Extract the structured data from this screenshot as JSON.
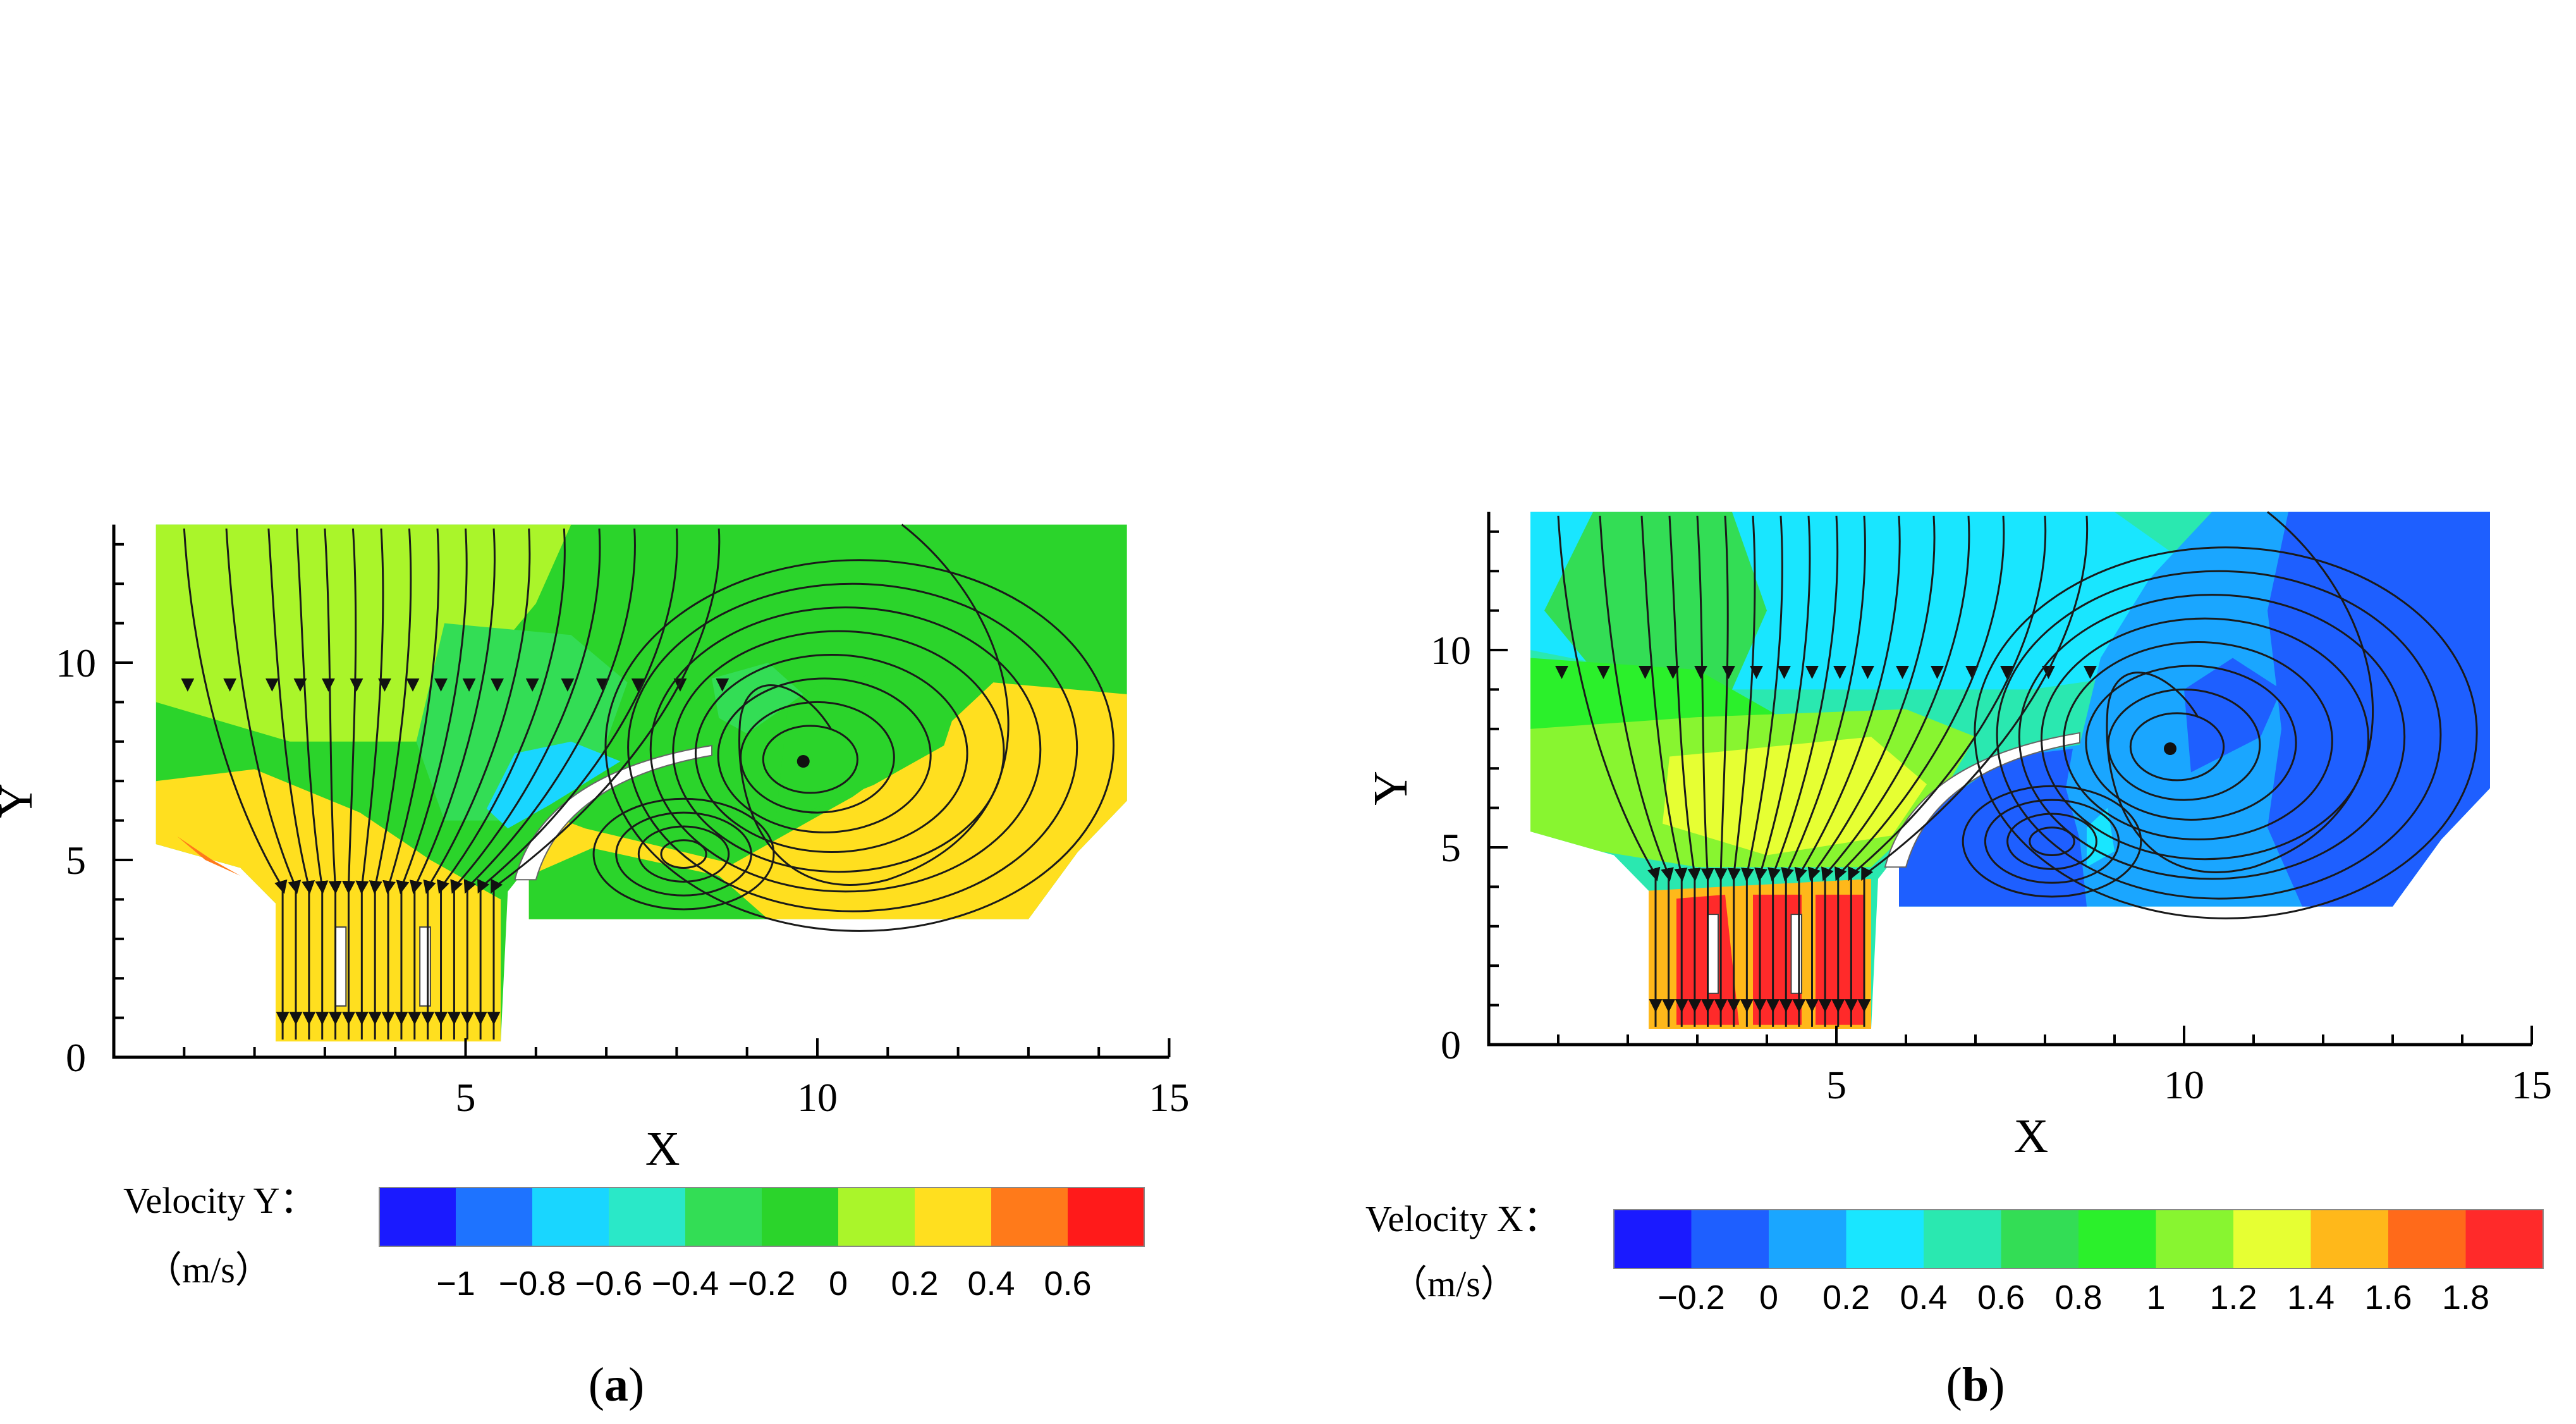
{
  "figure": {
    "panels": [
      {
        "id": "a",
        "panel_label_open": "(",
        "panel_label_letter": "a",
        "panel_label_close": ")",
        "colorbar_title": "Velocity Y：",
        "colorbar_unit": "（m/s）",
        "colorbar_colors": [
          "#1a1aff",
          "#1e73ff",
          "#19d6ff",
          "#2ae8c8",
          "#33dd55",
          "#2bd42b",
          "#aaf52a",
          "#ffdf1f",
          "#ff7a1a",
          "#ff1a1a"
        ],
        "colorbar_ticks": [
          "−1",
          "−0.8",
          "−0.6",
          "−0.4",
          "−0.2",
          "0",
          "0.2",
          "0.4",
          "0.6"
        ]
      },
      {
        "id": "b",
        "panel_label_open": "(",
        "panel_label_letter": "b",
        "panel_label_close": ")",
        "colorbar_title": "Velocity X：",
        "colorbar_unit": "（m/s）",
        "colorbar_colors": [
          "#1a1aff",
          "#1e5fff",
          "#1aa6ff",
          "#19e6ff",
          "#2ae8b0",
          "#33dd55",
          "#2bf02b",
          "#88f530",
          "#e6ff33",
          "#ffb81a",
          "#ff6a1a",
          "#ff2a2a"
        ],
        "colorbar_ticks": [
          "−0.2",
          "0",
          "0.2",
          "0.4",
          "0.6",
          "0.8",
          "1",
          "1.2",
          "1.4",
          "1.6",
          "1.8"
        ]
      }
    ]
  },
  "chart_data": [
    {
      "type": "heatmap",
      "title": "",
      "xlabel": "X",
      "ylabel": "Y",
      "xlim": [
        0,
        15
      ],
      "ylim": [
        0,
        13
      ],
      "xticks": [
        "5",
        "10",
        "15"
      ],
      "yticks": [
        "0",
        "5",
        "10"
      ],
      "colorbar": {
        "variable": "Velocity Y",
        "unit": "m/s",
        "levels": [
          -1.1,
          -0.9,
          -0.7,
          -0.5,
          -0.3,
          -0.1,
          0.1,
          0.3,
          0.5,
          0.7,
          0.9
        ]
      },
      "annotations": [
        "streamlines",
        "vortex near (9.8, 7.5)",
        "vortex near (8.1, 5.2)"
      ]
    },
    {
      "type": "heatmap",
      "title": "",
      "xlabel": "X",
      "ylabel": "Y",
      "xlim": [
        0,
        15
      ],
      "ylim": [
        0,
        13
      ],
      "xticks": [
        "5",
        "10",
        "15"
      ],
      "yticks": [
        "0",
        "5",
        "10"
      ],
      "colorbar": {
        "variable": "Velocity X",
        "unit": "m/s",
        "levels": [
          -0.3,
          -0.1,
          0.1,
          0.3,
          0.5,
          0.7,
          0.9,
          1.1,
          1.3,
          1.5,
          1.7,
          1.9
        ]
      },
      "annotations": [
        "streamlines",
        "vortex near (9.8, 7.5)",
        "vortex near (8.1, 5.2)"
      ]
    }
  ]
}
